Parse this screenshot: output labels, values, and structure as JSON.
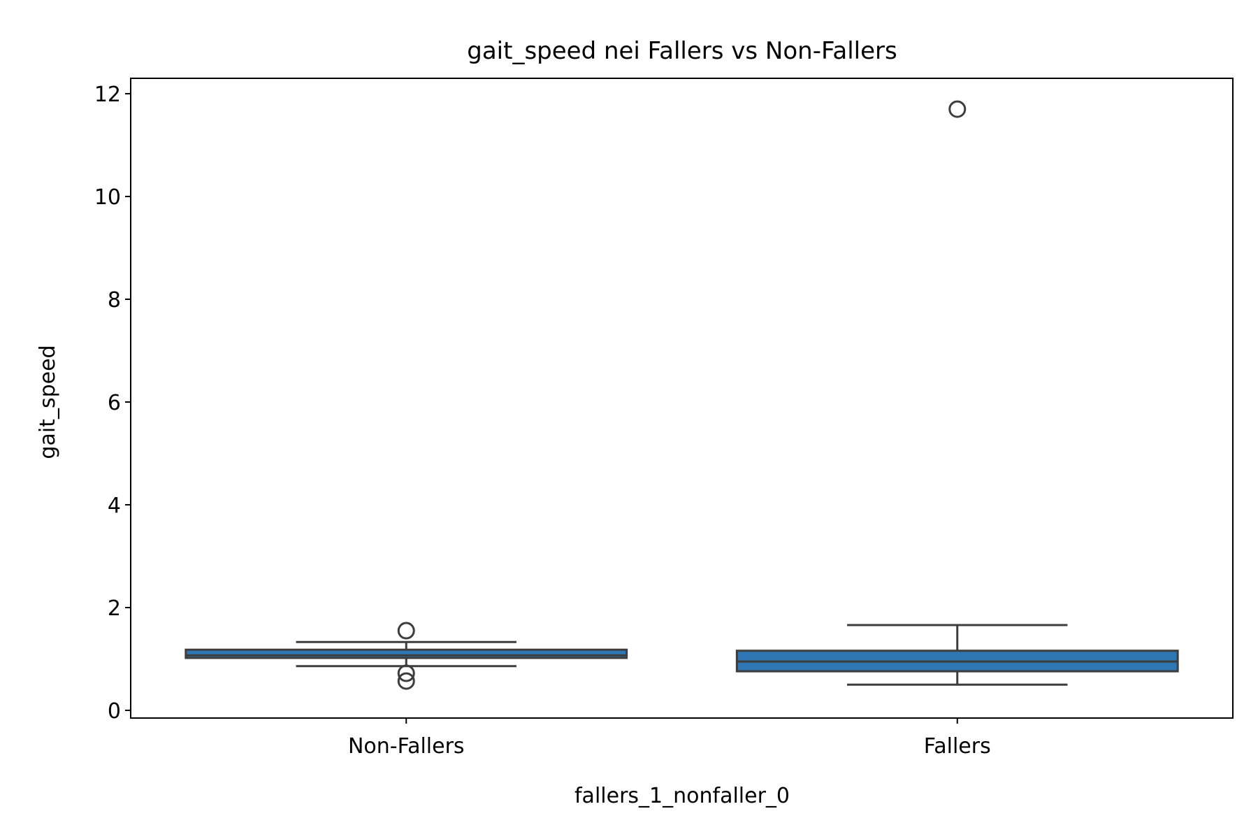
{
  "chart_data": {
    "type": "box",
    "title": "gait_speed nei Fallers vs Non-Fallers",
    "xlabel": "fallers_1_nonfaller_0",
    "ylabel": "gait_speed",
    "ylim": [
      -0.15,
      12.3
    ],
    "yticks": [
      0,
      2,
      4,
      6,
      8,
      10,
      12
    ],
    "grid": false,
    "box_fill": "#2f77b4",
    "edge_color": "#3d3d3d",
    "categories": [
      "Non-Fallers",
      "Fallers"
    ],
    "boxes": [
      {
        "category": "Non-Fallers",
        "whisker_low": 0.86,
        "q1": 1.02,
        "median": 1.07,
        "q3": 1.18,
        "whisker_high": 1.33,
        "outliers": [
          1.55,
          0.72,
          0.57
        ]
      },
      {
        "category": "Fallers",
        "whisker_low": 0.5,
        "q1": 0.76,
        "median": 0.95,
        "q3": 1.16,
        "whisker_high": 1.66,
        "outliers": [
          11.7
        ]
      }
    ]
  }
}
